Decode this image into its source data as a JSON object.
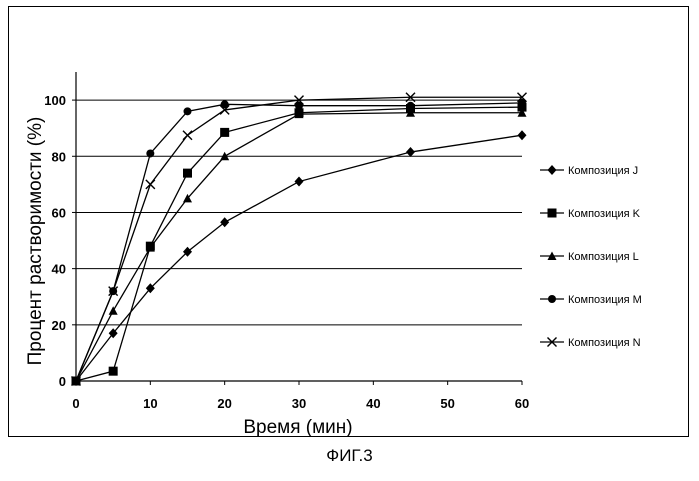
{
  "figure": {
    "caption": "ФИГ.3"
  },
  "chart_data": {
    "type": "line",
    "xlabel": "Время (мин)",
    "ylabel": "Процент растворимости (%)",
    "xlim": [
      0,
      60
    ],
    "ylim": [
      0,
      110
    ],
    "x_ticks": [
      0,
      10,
      20,
      30,
      40,
      50,
      60
    ],
    "y_ticks": [
      0,
      20,
      40,
      60,
      80,
      100
    ],
    "grid": "horizontal",
    "legend_position": "right",
    "series": [
      {
        "name": "Композиция J",
        "marker": "diamond",
        "color": "#000000",
        "x": [
          0,
          5,
          10,
          15,
          20,
          30,
          45,
          60
        ],
        "y": [
          0,
          17,
          33,
          46,
          56.5,
          71,
          81.5,
          87.5
        ]
      },
      {
        "name": "Композиция K",
        "marker": "square",
        "color": "#000000",
        "x": [
          0,
          5,
          10,
          15,
          20,
          30,
          45,
          60
        ],
        "y": [
          0,
          3.5,
          48,
          74,
          88.5,
          95.5,
          97,
          97.5
        ]
      },
      {
        "name": "Композиция L",
        "marker": "triangle",
        "color": "#000000",
        "x": [
          0,
          5,
          10,
          15,
          20,
          30,
          45,
          60
        ],
        "y": [
          0,
          25,
          47.5,
          65,
          80,
          95,
          95.5,
          95.5
        ]
      },
      {
        "name": "Композиция M",
        "marker": "circle",
        "color": "#000000",
        "x": [
          0,
          5,
          10,
          15,
          20,
          30,
          45,
          60
        ],
        "y": [
          0,
          32,
          81,
          96,
          98.5,
          98,
          98,
          99
        ]
      },
      {
        "name": "Композиция N",
        "marker": "cross",
        "color": "#000000",
        "x": [
          0,
          5,
          10,
          15,
          20,
          30,
          45,
          60
        ],
        "y": [
          0,
          32,
          70,
          87.5,
          96.5,
          100,
          101,
          101
        ]
      }
    ]
  }
}
